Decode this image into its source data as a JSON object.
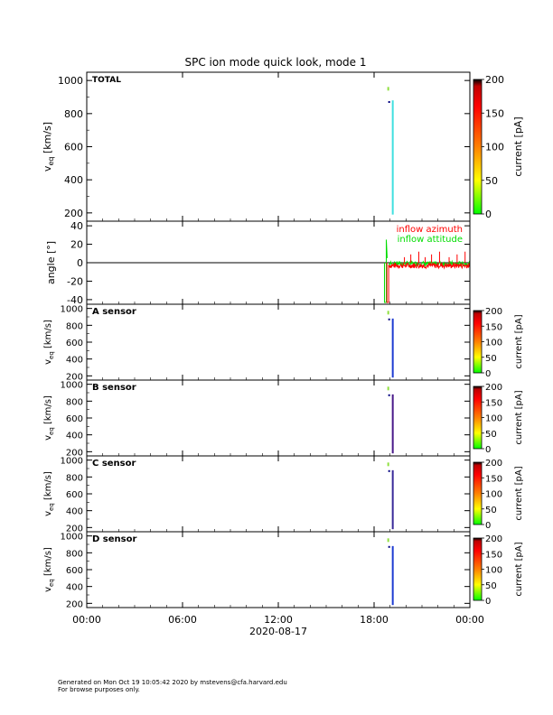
{
  "figure": {
    "title": "SPC ion mode quick look, mode 1"
  },
  "footer": {
    "line1": "Generated on Mon Oct 19 10:05:42 2020 by mstevens@cfa.harvard.edu",
    "line2": "For browse purposes only."
  },
  "chart_data": [
    {
      "type": "heatmap",
      "panel_label": "TOTAL",
      "ylabel": "v_eq [km/s]",
      "ylim": [
        150,
        1050
      ],
      "yticks": [
        200,
        400,
        600,
        800,
        1000
      ],
      "xlim_hours": [
        0,
        24
      ],
      "colorbar": {
        "label": "current [pA]",
        "range": [
          0,
          200
        ],
        "ticks": [
          0,
          50,
          100,
          150,
          200
        ]
      },
      "data_time_range_hours": [
        19.0,
        19.2
      ],
      "v_range": [
        190,
        880
      ],
      "dominant_color": "#40e0e0"
    },
    {
      "type": "line",
      "ylabel": "angle [°]",
      "ylim": [
        -45,
        45
      ],
      "yticks": [
        -40,
        -20,
        0,
        20,
        40
      ],
      "xlim_hours": [
        0,
        24
      ],
      "legend": "top-right",
      "series": [
        {
          "name": "inflow azimuth",
          "color": "#ff0000"
        },
        {
          "name": "inflow attitude",
          "color": "#00dd00"
        }
      ],
      "data_time_range_hours": [
        18.6,
        24.0
      ]
    },
    {
      "type": "heatmap",
      "panel_label": "A sensor",
      "ylabel": "v_eq [km/s]",
      "ylim": [
        150,
        1050
      ],
      "yticks": [
        200,
        400,
        600,
        800,
        1000
      ],
      "xlim_hours": [
        0,
        24
      ],
      "colorbar": {
        "label": "current [pA]",
        "range": [
          0,
          200
        ],
        "ticks": [
          0,
          50,
          100,
          150,
          200
        ]
      },
      "data_time_range_hours": [
        19.0,
        19.2
      ],
      "v_range": [
        180,
        880
      ],
      "dominant_color": "#1e3cd2"
    },
    {
      "type": "heatmap",
      "panel_label": "B sensor",
      "ylabel": "v_eq [km/s]",
      "ylim": [
        150,
        1050
      ],
      "yticks": [
        200,
        400,
        600,
        800,
        1000
      ],
      "xlim_hours": [
        0,
        24
      ],
      "colorbar": {
        "label": "current [pA]",
        "range": [
          0,
          200
        ],
        "ticks": [
          0,
          50,
          100,
          150,
          200
        ]
      },
      "data_time_range_hours": [
        19.0,
        19.2
      ],
      "v_range": [
        180,
        880
      ],
      "dominant_color": "#4a1a8a"
    },
    {
      "type": "heatmap",
      "panel_label": "C sensor",
      "ylabel": "v_eq [km/s]",
      "ylim": [
        150,
        1050
      ],
      "yticks": [
        200,
        400,
        600,
        800,
        1000
      ],
      "xlim_hours": [
        0,
        24
      ],
      "colorbar": {
        "label": "current [pA]",
        "range": [
          0,
          200
        ],
        "ticks": [
          0,
          50,
          100,
          150,
          200
        ]
      },
      "data_time_range_hours": [
        19.0,
        19.2
      ],
      "v_range": [
        180,
        880
      ],
      "dominant_color": "#3a2a9a"
    },
    {
      "type": "heatmap",
      "panel_label": "D sensor",
      "ylabel": "v_eq [km/s]",
      "ylim": [
        150,
        1050
      ],
      "yticks": [
        200,
        400,
        600,
        800,
        1000
      ],
      "xlim_hours": [
        0,
        24
      ],
      "colorbar": {
        "label": "current [pA]",
        "range": [
          0,
          200
        ],
        "ticks": [
          0,
          50,
          100,
          150,
          200
        ]
      },
      "data_time_range_hours": [
        19.0,
        19.2
      ],
      "v_range": [
        180,
        880
      ],
      "dominant_color": "#1e3cd2"
    }
  ],
  "xaxis": {
    "tick_labels": [
      "00:00",
      "06:00",
      "12:00",
      "18:00",
      "00:00"
    ],
    "tick_hours": [
      0,
      6,
      12,
      18,
      24
    ],
    "date_label": "2020-08-17"
  }
}
